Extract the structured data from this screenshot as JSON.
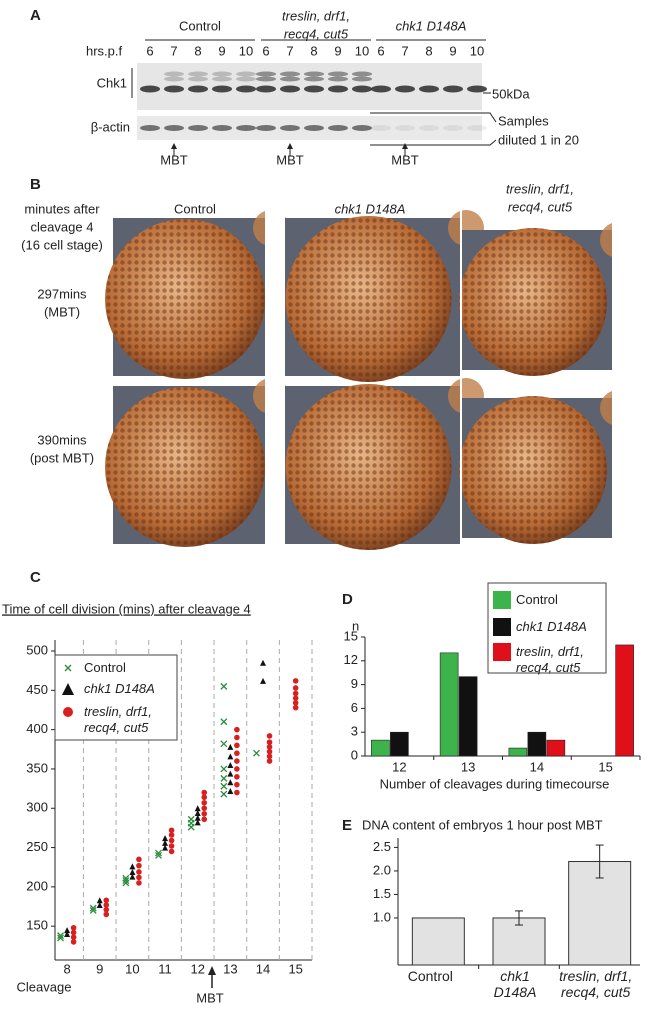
{
  "panels": {
    "a": {
      "label": "A",
      "groups": [
        [
          "Control"
        ],
        [
          "treslin, drf1,",
          "recq4, cut5"
        ],
        [
          "chk1 D148A"
        ]
      ],
      "lanes_label": "hrs.p.f",
      "lanes": [
        [
          6,
          7,
          8,
          9,
          10
        ],
        [
          6,
          7,
          8,
          9,
          10
        ],
        [
          6,
          7,
          8,
          9,
          10
        ]
      ],
      "rows": [
        "Chk1",
        "β-actin"
      ],
      "marker": "50kDa",
      "note": [
        "Samples",
        "diluted 1 in 20"
      ],
      "arrows": [
        "MBT",
        "MBT",
        "MBT"
      ]
    },
    "b": {
      "label": "B",
      "corner": [
        "minutes after",
        "cleavage 4",
        "(16 cell stage)"
      ],
      "columns": [
        [
          "Control"
        ],
        [
          "chk1 D148A"
        ],
        [
          "treslin, drf1,",
          "recq4, cut5"
        ]
      ],
      "rows": [
        [
          "297mins",
          "(MBT)"
        ],
        [
          "390mins",
          "(post MBT)"
        ]
      ]
    }
  },
  "chart_data": [
    {
      "type": "scatter",
      "label": "C",
      "title": "Time of cell division (mins) after cleavage 4",
      "xlabel": "Cleavage",
      "annotation": "MBT",
      "xlim": [
        7.63,
        15.5
      ],
      "xticks": [
        8,
        9,
        10,
        11,
        12,
        13,
        14,
        15
      ],
      "ylim": [
        107,
        514
      ],
      "yticks": [
        150,
        200,
        250,
        300,
        350,
        400,
        450,
        500
      ],
      "grid": true,
      "series": [
        {
          "name": "Control",
          "color": "#2e8b3e",
          "marker": "x",
          "x": [
            7.8,
            7.8,
            8.8,
            8.8,
            9.8,
            9.8,
            9.8,
            10.8,
            10.8,
            11.8,
            11.8,
            11.8,
            12.8,
            12.8,
            12.8,
            12.8,
            12.8,
            12.8,
            12.8,
            13.8
          ],
          "values": [
            135,
            138,
            170,
            173,
            205,
            208,
            211,
            240,
            243,
            276,
            281,
            286,
            455,
            410,
            382,
            350,
            338,
            328,
            318,
            370
          ]
        },
        {
          "name": "chk1 D148A",
          "color": "#111111",
          "marker": "triangle",
          "x": [
            8,
            8,
            9,
            9,
            10,
            10,
            10,
            11,
            11,
            11,
            12,
            12,
            12,
            12,
            13,
            13,
            13,
            13,
            13,
            13,
            14,
            14
          ],
          "values": [
            140,
            145,
            177,
            183,
            213,
            219,
            226,
            250,
            256,
            262,
            282,
            288,
            294,
            300,
            378,
            366,
            355,
            344,
            333,
            322,
            485,
            462
          ]
        },
        {
          "name": "treslin, drf1, recq4, cut5",
          "color": "#d92020",
          "marker": "circle",
          "x": [
            8.2,
            8.2,
            8.2,
            8.2,
            9.2,
            9.2,
            9.2,
            9.2,
            10.2,
            10.2,
            10.2,
            10.2,
            10.2,
            11.2,
            11.2,
            11.2,
            11.2,
            11.2,
            12.2,
            12.2,
            12.2,
            12.2,
            12.2,
            12.2,
            13.2,
            13.2,
            13.2,
            13.2,
            13.2,
            13.2,
            13.2,
            13.2,
            13.2,
            14.2,
            14.2,
            14.2,
            14.2,
            14.2,
            14.2,
            15,
            15,
            15,
            15,
            15,
            15
          ],
          "values": [
            130,
            136,
            142,
            148,
            165,
            171,
            177,
            183,
            205,
            212,
            219,
            227,
            235,
            245,
            252,
            259,
            266,
            272,
            286,
            293,
            300,
            307,
            314,
            320,
            400,
            390,
            380,
            370,
            360,
            350,
            340,
            330,
            320,
            392,
            384,
            378,
            372,
            366,
            360,
            462,
            453,
            446,
            440,
            434,
            428
          ]
        }
      ]
    },
    {
      "type": "bar",
      "label": "D",
      "ylabel": "n",
      "xlabel": "Number of cleavages during timecourse",
      "categories": [
        12,
        13,
        14,
        15
      ],
      "ylim": [
        0,
        15
      ],
      "yticks": [
        0,
        3,
        6,
        9,
        12,
        15
      ],
      "series": [
        {
          "name": "Control",
          "color": "#3cb44b",
          "values": [
            2,
            13,
            1,
            0
          ]
        },
        {
          "name": "chk1 D148A",
          "color": "#111111",
          "values": [
            3,
            10,
            3,
            0
          ]
        },
        {
          "name": "treslin, drf1, recq4, cut5",
          "color": "#e0101a",
          "values": [
            0,
            0,
            2,
            14
          ]
        }
      ]
    },
    {
      "type": "bar",
      "label": "E",
      "title": "DNA content of embryos 1 hour post MBT",
      "categories": [
        "Control",
        "chk1 D148A",
        "treslin, drf1, recq4, cut5"
      ],
      "values": [
        1.0,
        1.0,
        2.2
      ],
      "errors": [
        null,
        0.15,
        0.35
      ],
      "color": "#e2e2e2",
      "ylim": [
        0,
        2.7
      ],
      "yticks": [
        {
          "value": 1,
          "label": "1.0"
        },
        1.5,
        {
          "value": 2,
          "label": "2.0"
        },
        2.5
      ]
    }
  ]
}
